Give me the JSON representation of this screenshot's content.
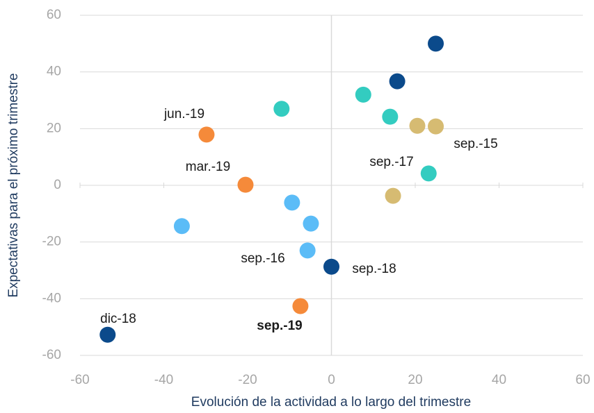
{
  "chart_data": {
    "type": "scatter",
    "xlabel": "Evolución de la actividad a lo largo del trimestre",
    "ylabel": "Expectativas para el próximo trimestre",
    "xlim": [
      -60,
      60
    ],
    "ylim": [
      -60,
      60
    ],
    "xticks": [
      -60,
      -40,
      -20,
      0,
      20,
      40,
      60
    ],
    "yticks": [
      -60,
      -40,
      -20,
      0,
      20,
      40,
      60
    ],
    "grid": true,
    "series": [
      {
        "color": "#0b4a8b",
        "x": [
          24.9,
          15.7,
          0,
          -53.4
        ],
        "values": [
          50,
          36.7,
          -28.7,
          -52.7
        ]
      },
      {
        "color": "#33ccc0",
        "x": [
          -11.9,
          7.6,
          14,
          23.2
        ],
        "values": [
          27,
          32,
          24.2,
          4.2
        ]
      },
      {
        "color": "#d6bb72",
        "x": [
          20.5,
          24.9,
          14.7
        ],
        "values": [
          21,
          20.8,
          -3.7
        ]
      },
      {
        "color": "#5bbcf7",
        "x": [
          -35.7,
          -9.4,
          -4.9,
          -5.7
        ],
        "values": [
          -14.4,
          -6.1,
          -13.5,
          -23
        ]
      },
      {
        "color": "#f58a3a",
        "x": [
          -29.8,
          -20.5,
          -7.4
        ],
        "values": [
          17.9,
          0.2,
          -42.6
        ]
      }
    ],
    "annotations": [
      {
        "text": "jun.-19"
      },
      {
        "text": "mar.-19"
      },
      {
        "text": "sep.-19",
        "bold": true
      },
      {
        "text": "sep.-15"
      },
      {
        "text": "sep.-17"
      },
      {
        "text": "sep.-16"
      },
      {
        "text": "sep.-18"
      },
      {
        "text": "dic-18"
      }
    ]
  }
}
